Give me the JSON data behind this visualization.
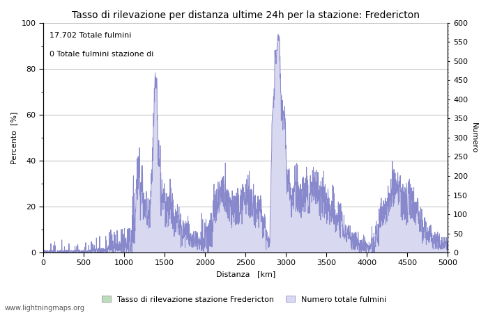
{
  "title": "Tasso di rilevazione per distanza ultime 24h per la stazione: Fredericton",
  "xlabel": "Distanza   [km]",
  "ylabel_left": "Percento  [%]",
  "ylabel_right": "Numero",
  "annotation_line1": "17.702 Totale fulmini",
  "annotation_line2": "0 Totale fulmini stazione di",
  "xlim": [
    0,
    5000
  ],
  "ylim_left": [
    0,
    100
  ],
  "ylim_right": [
    0,
    600
  ],
  "xticks": [
    0,
    500,
    1000,
    1500,
    2000,
    2500,
    3000,
    3500,
    4000,
    4500,
    5000
  ],
  "yticks_left": [
    0,
    20,
    40,
    60,
    80,
    100
  ],
  "yticks_right": [
    0,
    50,
    100,
    150,
    200,
    250,
    300,
    350,
    400,
    450,
    500,
    550,
    600
  ],
  "legend_label_green": "Tasso di rilevazione stazione Fredericton",
  "legend_label_blue": "Numero totale fulmini",
  "watermark": "www.lightningmaps.org",
  "line_color": "#8888cc",
  "fill_color": "#d8d8f0",
  "grid_color": "#bbbbbb",
  "background_color": "#ffffff",
  "title_fontsize": 10,
  "axis_fontsize": 8,
  "tick_fontsize": 8,
  "legend_green_color": "#bbddbb",
  "legend_green_edge": "#888888"
}
